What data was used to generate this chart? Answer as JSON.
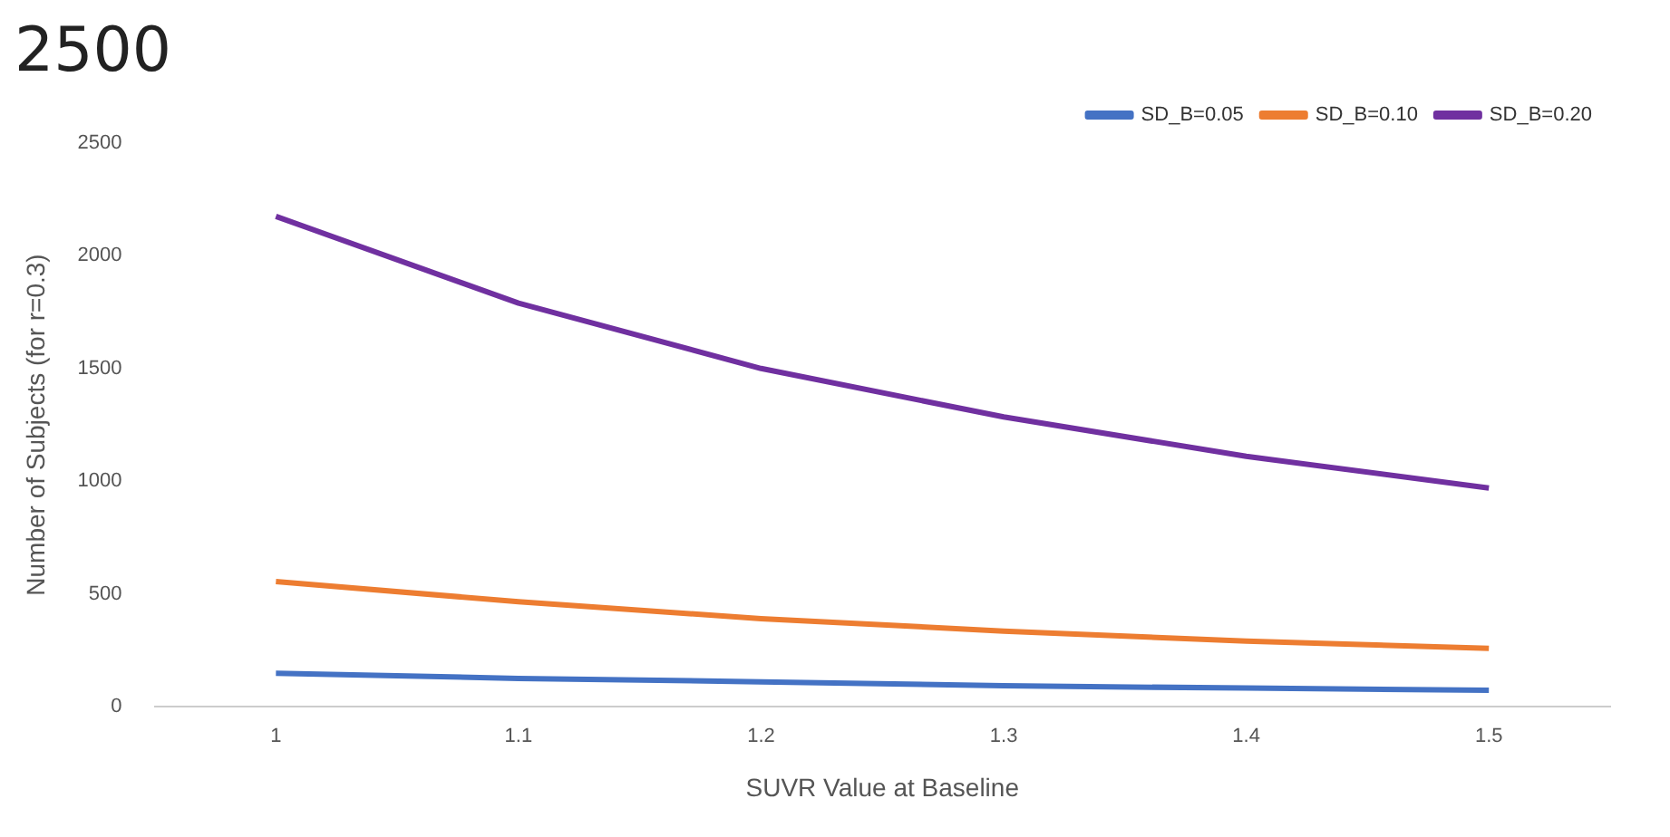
{
  "chart_data": {
    "type": "line",
    "title": "2500",
    "xlabel": "SUVR Value at Baseline",
    "ylabel": "Number of Subjects (for r=0.3)",
    "categories": [
      "1",
      "1.1",
      "1.2",
      "1.3",
      "1.4",
      "1.5"
    ],
    "series": [
      {
        "name": "SD_B=0.05",
        "color": "#4472c4",
        "values": [
          148,
          125,
          110,
          92,
          82,
          72
        ]
      },
      {
        "name": "SD_B=0.10",
        "color": "#ed7d31",
        "values": [
          555,
          465,
          390,
          335,
          290,
          258
        ]
      },
      {
        "name": "SD_B=0.20",
        "color": "#7030a0",
        "values": [
          2175,
          1790,
          1500,
          1285,
          1110,
          970
        ]
      }
    ],
    "ylim": [
      0,
      2500
    ],
    "yticks": [
      0,
      500,
      1000,
      1500,
      2000,
      2500
    ],
    "grid": false,
    "legend": "top",
    "marker": "none",
    "line_style": "solid"
  }
}
